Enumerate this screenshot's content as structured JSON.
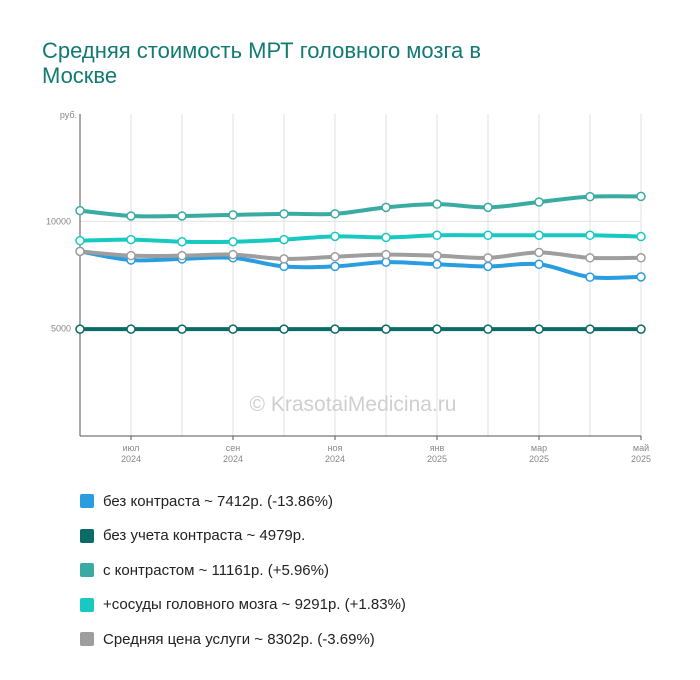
{
  "title": "Средняя стоимость МРТ головного мозга в Москве",
  "watermark": "© KrasotaiMedicina.ru",
  "chart_data": {
    "type": "line",
    "y_unit_label": "руб.",
    "ylim": [
      0,
      15000
    ],
    "y_ticks": [
      {
        "value": 5000,
        "label": "5000"
      },
      {
        "value": 10000,
        "label": "10000"
      }
    ],
    "x_labels": [
      {
        "index": 1,
        "month": "июл",
        "year": "2024"
      },
      {
        "index": 3,
        "month": "сен",
        "year": "2024"
      },
      {
        "index": 5,
        "month": "ноя",
        "year": "2024"
      },
      {
        "index": 7,
        "month": "янв",
        "year": "2025"
      },
      {
        "index": 9,
        "month": "мар",
        "year": "2025"
      },
      {
        "index": 11,
        "month": "май",
        "year": "2025"
      }
    ],
    "point_count": 12,
    "grid": true,
    "legend_position": "bottom",
    "series": [
      {
        "name": "без контраста",
        "color": "#2a9de0",
        "values": [
          8600,
          8200,
          8250,
          8300,
          7900,
          7900,
          8100,
          8000,
          7900,
          8000,
          7400,
          7412
        ]
      },
      {
        "name": "без учета контраста",
        "color": "#0b6b66",
        "values": [
          4979,
          4979,
          4979,
          4979,
          4979,
          4979,
          4979,
          4979,
          4979,
          4979,
          4979,
          4979
        ]
      },
      {
        "name": "с контрастом",
        "color": "#3aaba2",
        "values": [
          10500,
          10250,
          10250,
          10300,
          10350,
          10350,
          10650,
          10800,
          10650,
          10900,
          11150,
          11161
        ]
      },
      {
        "name": "+сосуды головного мозга",
        "color": "#18c9c2",
        "values": [
          9100,
          9150,
          9050,
          9050,
          9150,
          9300,
          9250,
          9350,
          9350,
          9350,
          9350,
          9291
        ]
      },
      {
        "name": "Средняя цена услуги",
        "color": "#9e9e9e",
        "values": [
          8600,
          8400,
          8400,
          8450,
          8250,
          8350,
          8450,
          8400,
          8300,
          8550,
          8300,
          8302
        ]
      }
    ]
  },
  "legend": [
    {
      "label": "без контраста ~ 7412р. (-13.86%)",
      "color": "#2a9de0"
    },
    {
      "label": "без учета контраста ~ 4979р.",
      "color": "#0b6b66"
    },
    {
      "label": "с контрастом ~ 11161р. (+5.96%)",
      "color": "#3aaba2"
    },
    {
      "label": "+сосуды головного мозга ~ 9291р. (+1.83%)",
      "color": "#18c9c2"
    },
    {
      "label": "Средняя цена услуги ~ 8302р. (-3.69%)",
      "color": "#9e9e9e"
    }
  ]
}
